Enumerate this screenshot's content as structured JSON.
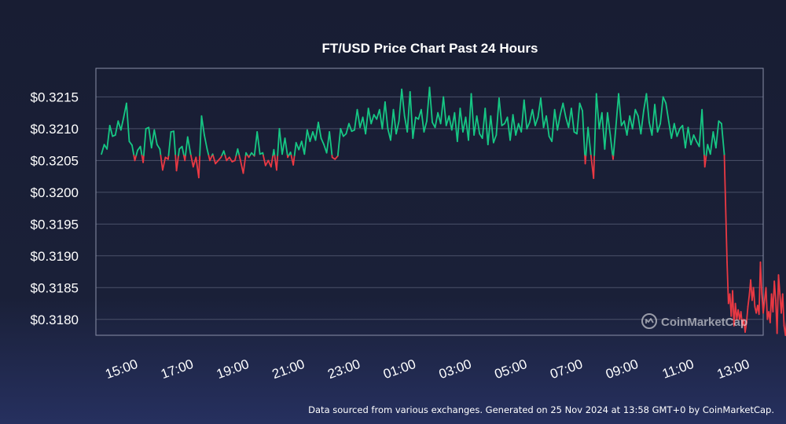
{
  "footer_text": "Data sourced from various exchanges. Generated on 25 Nov 2024 at 13:58 GMT+0 by CoinMarketCap.",
  "watermark_text": "CoinMarketCap",
  "chart_data": {
    "type": "line",
    "title": "FT/USD Price Chart Past 24 Hours",
    "xlabel": "",
    "ylabel": "",
    "ylim": [
      0.31775,
      0.32195
    ],
    "ytick_values": [
      0.3215,
      0.321,
      0.3205,
      0.32,
      0.3195,
      0.319,
      0.3185,
      0.318
    ],
    "ytick_labels": [
      "$0.3215",
      "$0.3210",
      "$0.3205",
      "$0.3200",
      "$0.3195",
      "$0.3190",
      "$0.3185",
      "$0.3180"
    ],
    "xtick_labels": [
      "15:00",
      "17:00",
      "19:00",
      "21:00",
      "23:00",
      "01:00",
      "03:00",
      "05:00",
      "07:00",
      "09:00",
      "11:00",
      "13:00"
    ],
    "xlim_hours": [
      13.8,
      37.8
    ],
    "baseline": 0.32058,
    "colors": {
      "above": "#16c784",
      "below": "#ea3943",
      "grid": "#4a5068",
      "frame": "#8a90a8"
    },
    "grid": true,
    "points": [
      [
        14.0,
        0.3206
      ],
      [
        14.1,
        0.32075
      ],
      [
        14.2,
        0.32068
      ],
      [
        14.3,
        0.32105
      ],
      [
        14.4,
        0.32088
      ],
      [
        14.5,
        0.3209
      ],
      [
        14.6,
        0.32112
      ],
      [
        14.7,
        0.32098
      ],
      [
        14.8,
        0.32118
      ],
      [
        14.9,
        0.3214
      ],
      [
        15.0,
        0.3208
      ],
      [
        15.1,
        0.32074
      ],
      [
        15.2,
        0.3205
      ],
      [
        15.3,
        0.32066
      ],
      [
        15.4,
        0.32072
      ],
      [
        15.5,
        0.32047
      ],
      [
        15.6,
        0.321
      ],
      [
        15.7,
        0.32102
      ],
      [
        15.8,
        0.3207
      ],
      [
        15.9,
        0.32098
      ],
      [
        16.0,
        0.32075
      ],
      [
        16.1,
        0.32068
      ],
      [
        16.2,
        0.32035
      ],
      [
        16.3,
        0.32055
      ],
      [
        16.4,
        0.32052
      ],
      [
        16.5,
        0.32095
      ],
      [
        16.6,
        0.32096
      ],
      [
        16.7,
        0.32034
      ],
      [
        16.8,
        0.32068
      ],
      [
        16.9,
        0.32072
      ],
      [
        17.0,
        0.3205
      ],
      [
        17.1,
        0.32087
      ],
      [
        17.2,
        0.32062
      ],
      [
        17.3,
        0.3204
      ],
      [
        17.4,
        0.32055
      ],
      [
        17.5,
        0.32023
      ],
      [
        17.6,
        0.3212
      ],
      [
        17.7,
        0.3209
      ],
      [
        17.8,
        0.32068
      ],
      [
        17.9,
        0.3205
      ],
      [
        18.0,
        0.3206
      ],
      [
        18.1,
        0.32045
      ],
      [
        18.2,
        0.3205
      ],
      [
        18.3,
        0.32055
      ],
      [
        18.4,
        0.32065
      ],
      [
        18.5,
        0.3205
      ],
      [
        18.6,
        0.32055
      ],
      [
        18.7,
        0.32048
      ],
      [
        18.8,
        0.3205
      ],
      [
        18.9,
        0.32068
      ],
      [
        19.0,
        0.3205
      ],
      [
        19.1,
        0.3203
      ],
      [
        19.2,
        0.32062
      ],
      [
        19.3,
        0.32055
      ],
      [
        19.4,
        0.32062
      ],
      [
        19.5,
        0.32057
      ],
      [
        19.6,
        0.32095
      ],
      [
        19.7,
        0.3206
      ],
      [
        19.8,
        0.32062
      ],
      [
        19.9,
        0.32042
      ],
      [
        20.0,
        0.3205
      ],
      [
        20.1,
        0.3204
      ],
      [
        20.2,
        0.32067
      ],
      [
        20.3,
        0.32035
      ],
      [
        20.4,
        0.321
      ],
      [
        20.5,
        0.3206
      ],
      [
        20.6,
        0.32085
      ],
      [
        20.7,
        0.32055
      ],
      [
        20.8,
        0.32063
      ],
      [
        20.9,
        0.32043
      ],
      [
        21.0,
        0.32078
      ],
      [
        21.1,
        0.32067
      ],
      [
        21.2,
        0.3208
      ],
      [
        21.3,
        0.3206
      ],
      [
        21.4,
        0.32098
      ],
      [
        21.5,
        0.3208
      ],
      [
        21.6,
        0.32095
      ],
      [
        21.7,
        0.32082
      ],
      [
        21.8,
        0.3211
      ],
      [
        21.9,
        0.32085
      ],
      [
        22.0,
        0.32075
      ],
      [
        22.1,
        0.32062
      ],
      [
        22.2,
        0.32095
      ],
      [
        22.3,
        0.32055
      ],
      [
        22.4,
        0.32052
      ],
      [
        22.5,
        0.32057
      ],
      [
        22.6,
        0.321
      ],
      [
        22.7,
        0.32088
      ],
      [
        22.8,
        0.32092
      ],
      [
        22.9,
        0.32108
      ],
      [
        23.0,
        0.32096
      ],
      [
        23.1,
        0.32098
      ],
      [
        23.2,
        0.3213
      ],
      [
        23.3,
        0.32102
      ],
      [
        23.4,
        0.32118
      ],
      [
        23.5,
        0.32092
      ],
      [
        23.6,
        0.32132
      ],
      [
        23.7,
        0.32108
      ],
      [
        23.8,
        0.32122
      ],
      [
        23.9,
        0.32115
      ],
      [
        24.0,
        0.3213
      ],
      [
        24.1,
        0.321
      ],
      [
        24.2,
        0.32142
      ],
      [
        24.3,
        0.321
      ],
      [
        24.4,
        0.32082
      ],
      [
        24.5,
        0.3213
      ],
      [
        24.6,
        0.32092
      ],
      [
        24.7,
        0.32112
      ],
      [
        24.8,
        0.32162
      ],
      [
        24.9,
        0.3212
      ],
      [
        25.0,
        0.32095
      ],
      [
        25.1,
        0.32158
      ],
      [
        25.2,
        0.32085
      ],
      [
        25.3,
        0.32118
      ],
      [
        25.4,
        0.32115
      ],
      [
        25.5,
        0.3213
      ],
      [
        25.6,
        0.32095
      ],
      [
        25.7,
        0.32112
      ],
      [
        25.8,
        0.32165
      ],
      [
        25.9,
        0.3211
      ],
      [
        26.0,
        0.32102
      ],
      [
        26.1,
        0.32125
      ],
      [
        26.2,
        0.32108
      ],
      [
        26.3,
        0.3215
      ],
      [
        26.4,
        0.32105
      ],
      [
        26.5,
        0.3212
      ],
      [
        26.6,
        0.32098
      ],
      [
        26.7,
        0.32125
      ],
      [
        26.8,
        0.3208
      ],
      [
        26.9,
        0.32132
      ],
      [
        27.0,
        0.32095
      ],
      [
        27.1,
        0.32118
      ],
      [
        27.2,
        0.32082
      ],
      [
        27.3,
        0.32155
      ],
      [
        27.4,
        0.3209
      ],
      [
        27.5,
        0.3212
      ],
      [
        27.6,
        0.32092
      ],
      [
        27.7,
        0.32085
      ],
      [
        27.8,
        0.32132
      ],
      [
        27.9,
        0.32075
      ],
      [
        28.0,
        0.3212
      ],
      [
        28.1,
        0.32078
      ],
      [
        28.2,
        0.3209
      ],
      [
        28.3,
        0.32148
      ],
      [
        28.4,
        0.32105
      ],
      [
        28.5,
        0.32108
      ],
      [
        28.6,
        0.32118
      ],
      [
        28.7,
        0.32082
      ],
      [
        28.8,
        0.32122
      ],
      [
        28.9,
        0.3209
      ],
      [
        29.0,
        0.32108
      ],
      [
        29.1,
        0.32095
      ],
      [
        29.2,
        0.32145
      ],
      [
        29.3,
        0.321
      ],
      [
        29.4,
        0.3211
      ],
      [
        29.5,
        0.3213
      ],
      [
        29.6,
        0.32105
      ],
      [
        29.7,
        0.32118
      ],
      [
        29.8,
        0.32148
      ],
      [
        29.9,
        0.32102
      ],
      [
        30.0,
        0.3212
      ],
      [
        30.1,
        0.32088
      ],
      [
        30.2,
        0.3208
      ],
      [
        30.3,
        0.3213
      ],
      [
        30.4,
        0.32098
      ],
      [
        30.5,
        0.32122
      ],
      [
        30.6,
        0.3214
      ],
      [
        30.7,
        0.32118
      ],
      [
        30.8,
        0.32102
      ],
      [
        30.9,
        0.32132
      ],
      [
        31.0,
        0.32095
      ],
      [
        31.1,
        0.32092
      ],
      [
        31.2,
        0.3214
      ],
      [
        31.3,
        0.32128
      ],
      [
        31.4,
        0.32045
      ],
      [
        31.5,
        0.32102
      ],
      [
        31.6,
        0.3206
      ],
      [
        31.7,
        0.32022
      ],
      [
        31.8,
        0.32155
      ],
      [
        31.9,
        0.321
      ],
      [
        32.0,
        0.32125
      ],
      [
        32.1,
        0.32068
      ],
      [
        32.2,
        0.32125
      ],
      [
        32.3,
        0.3209
      ],
      [
        32.4,
        0.32052
      ],
      [
        32.5,
        0.32102
      ],
      [
        32.6,
        0.32155
      ],
      [
        32.7,
        0.32105
      ],
      [
        32.8,
        0.32112
      ],
      [
        32.9,
        0.3209
      ],
      [
        33.0,
        0.3212
      ],
      [
        33.1,
        0.321
      ],
      [
        33.2,
        0.3213
      ],
      [
        33.3,
        0.3212
      ],
      [
        33.4,
        0.32092
      ],
      [
        33.5,
        0.32128
      ],
      [
        33.6,
        0.32155
      ],
      [
        33.7,
        0.3211
      ],
      [
        33.8,
        0.3209
      ],
      [
        33.9,
        0.32138
      ],
      [
        34.0,
        0.32095
      ],
      [
        34.1,
        0.32108
      ],
      [
        34.2,
        0.3215
      ],
      [
        34.3,
        0.3214
      ],
      [
        34.4,
        0.32112
      ],
      [
        34.5,
        0.32085
      ],
      [
        34.6,
        0.32108
      ],
      [
        34.7,
        0.32088
      ],
      [
        34.8,
        0.321
      ],
      [
        34.9,
        0.32105
      ],
      [
        35.0,
        0.3207
      ],
      [
        35.1,
        0.32102
      ],
      [
        35.2,
        0.32075
      ],
      [
        35.3,
        0.3209
      ],
      [
        35.4,
        0.3208
      ],
      [
        35.5,
        0.32072
      ],
      [
        35.6,
        0.3213
      ],
      [
        35.7,
        0.3204
      ],
      [
        35.8,
        0.32075
      ],
      [
        35.9,
        0.3206
      ],
      [
        36.0,
        0.32095
      ],
      [
        36.1,
        0.3207
      ],
      [
        36.2,
        0.32112
      ],
      [
        36.3,
        0.32108
      ],
      [
        36.4,
        0.3206
      ],
      [
        36.5,
        0.3189
      ],
      [
        36.55,
        0.31825
      ],
      [
        36.6,
        0.3184
      ],
      [
        36.65,
        0.31805
      ],
      [
        36.7,
        0.31845
      ],
      [
        36.75,
        0.3179
      ],
      [
        36.8,
        0.31825
      ],
      [
        36.85,
        0.318
      ],
      [
        36.9,
        0.31815
      ],
      [
        36.95,
        0.318
      ],
      [
        37.0,
        0.31812
      ],
      [
        37.05,
        0.3179
      ],
      [
        37.1,
        0.318
      ],
      [
        37.15,
        0.3178
      ],
      [
        37.2,
        0.31795
      ],
      [
        37.25,
        0.3182
      ],
      [
        37.3,
        0.31838
      ],
      [
        37.35,
        0.31862
      ],
      [
        37.4,
        0.3183
      ],
      [
        37.45,
        0.3185
      ],
      [
        37.5,
        0.3182
      ],
      [
        37.55,
        0.3181
      ],
      [
        37.6,
        0.31822
      ],
      [
        37.65,
        0.31808
      ],
      [
        37.7,
        0.3189
      ],
      [
        37.75,
        0.3184
      ],
      [
        37.8,
        0.3181
      ],
      [
        37.85,
        0.3183
      ],
      [
        37.9,
        0.3185
      ],
      [
        37.95,
        0.318
      ],
      [
        38.0,
        0.31812
      ],
      [
        38.05,
        0.31795
      ],
      [
        38.1,
        0.3184
      ],
      [
        38.15,
        0.31812
      ],
      [
        38.2,
        0.3186
      ],
      [
        38.25,
        0.3183
      ],
      [
        38.3,
        0.31778
      ],
      [
        38.35,
        0.3187
      ],
      [
        38.4,
        0.3184
      ],
      [
        38.45,
        0.3181
      ],
      [
        38.5,
        0.3184
      ],
      [
        38.55,
        0.3179
      ],
      [
        38.6,
        0.31775
      ],
      [
        38.65,
        0.318
      ],
      [
        38.7,
        0.31825
      ],
      [
        38.75,
        0.3182
      ],
      [
        38.8,
        0.31845
      ],
      [
        38.85,
        0.31835
      ],
      [
        38.9,
        0.31858
      ]
    ]
  }
}
